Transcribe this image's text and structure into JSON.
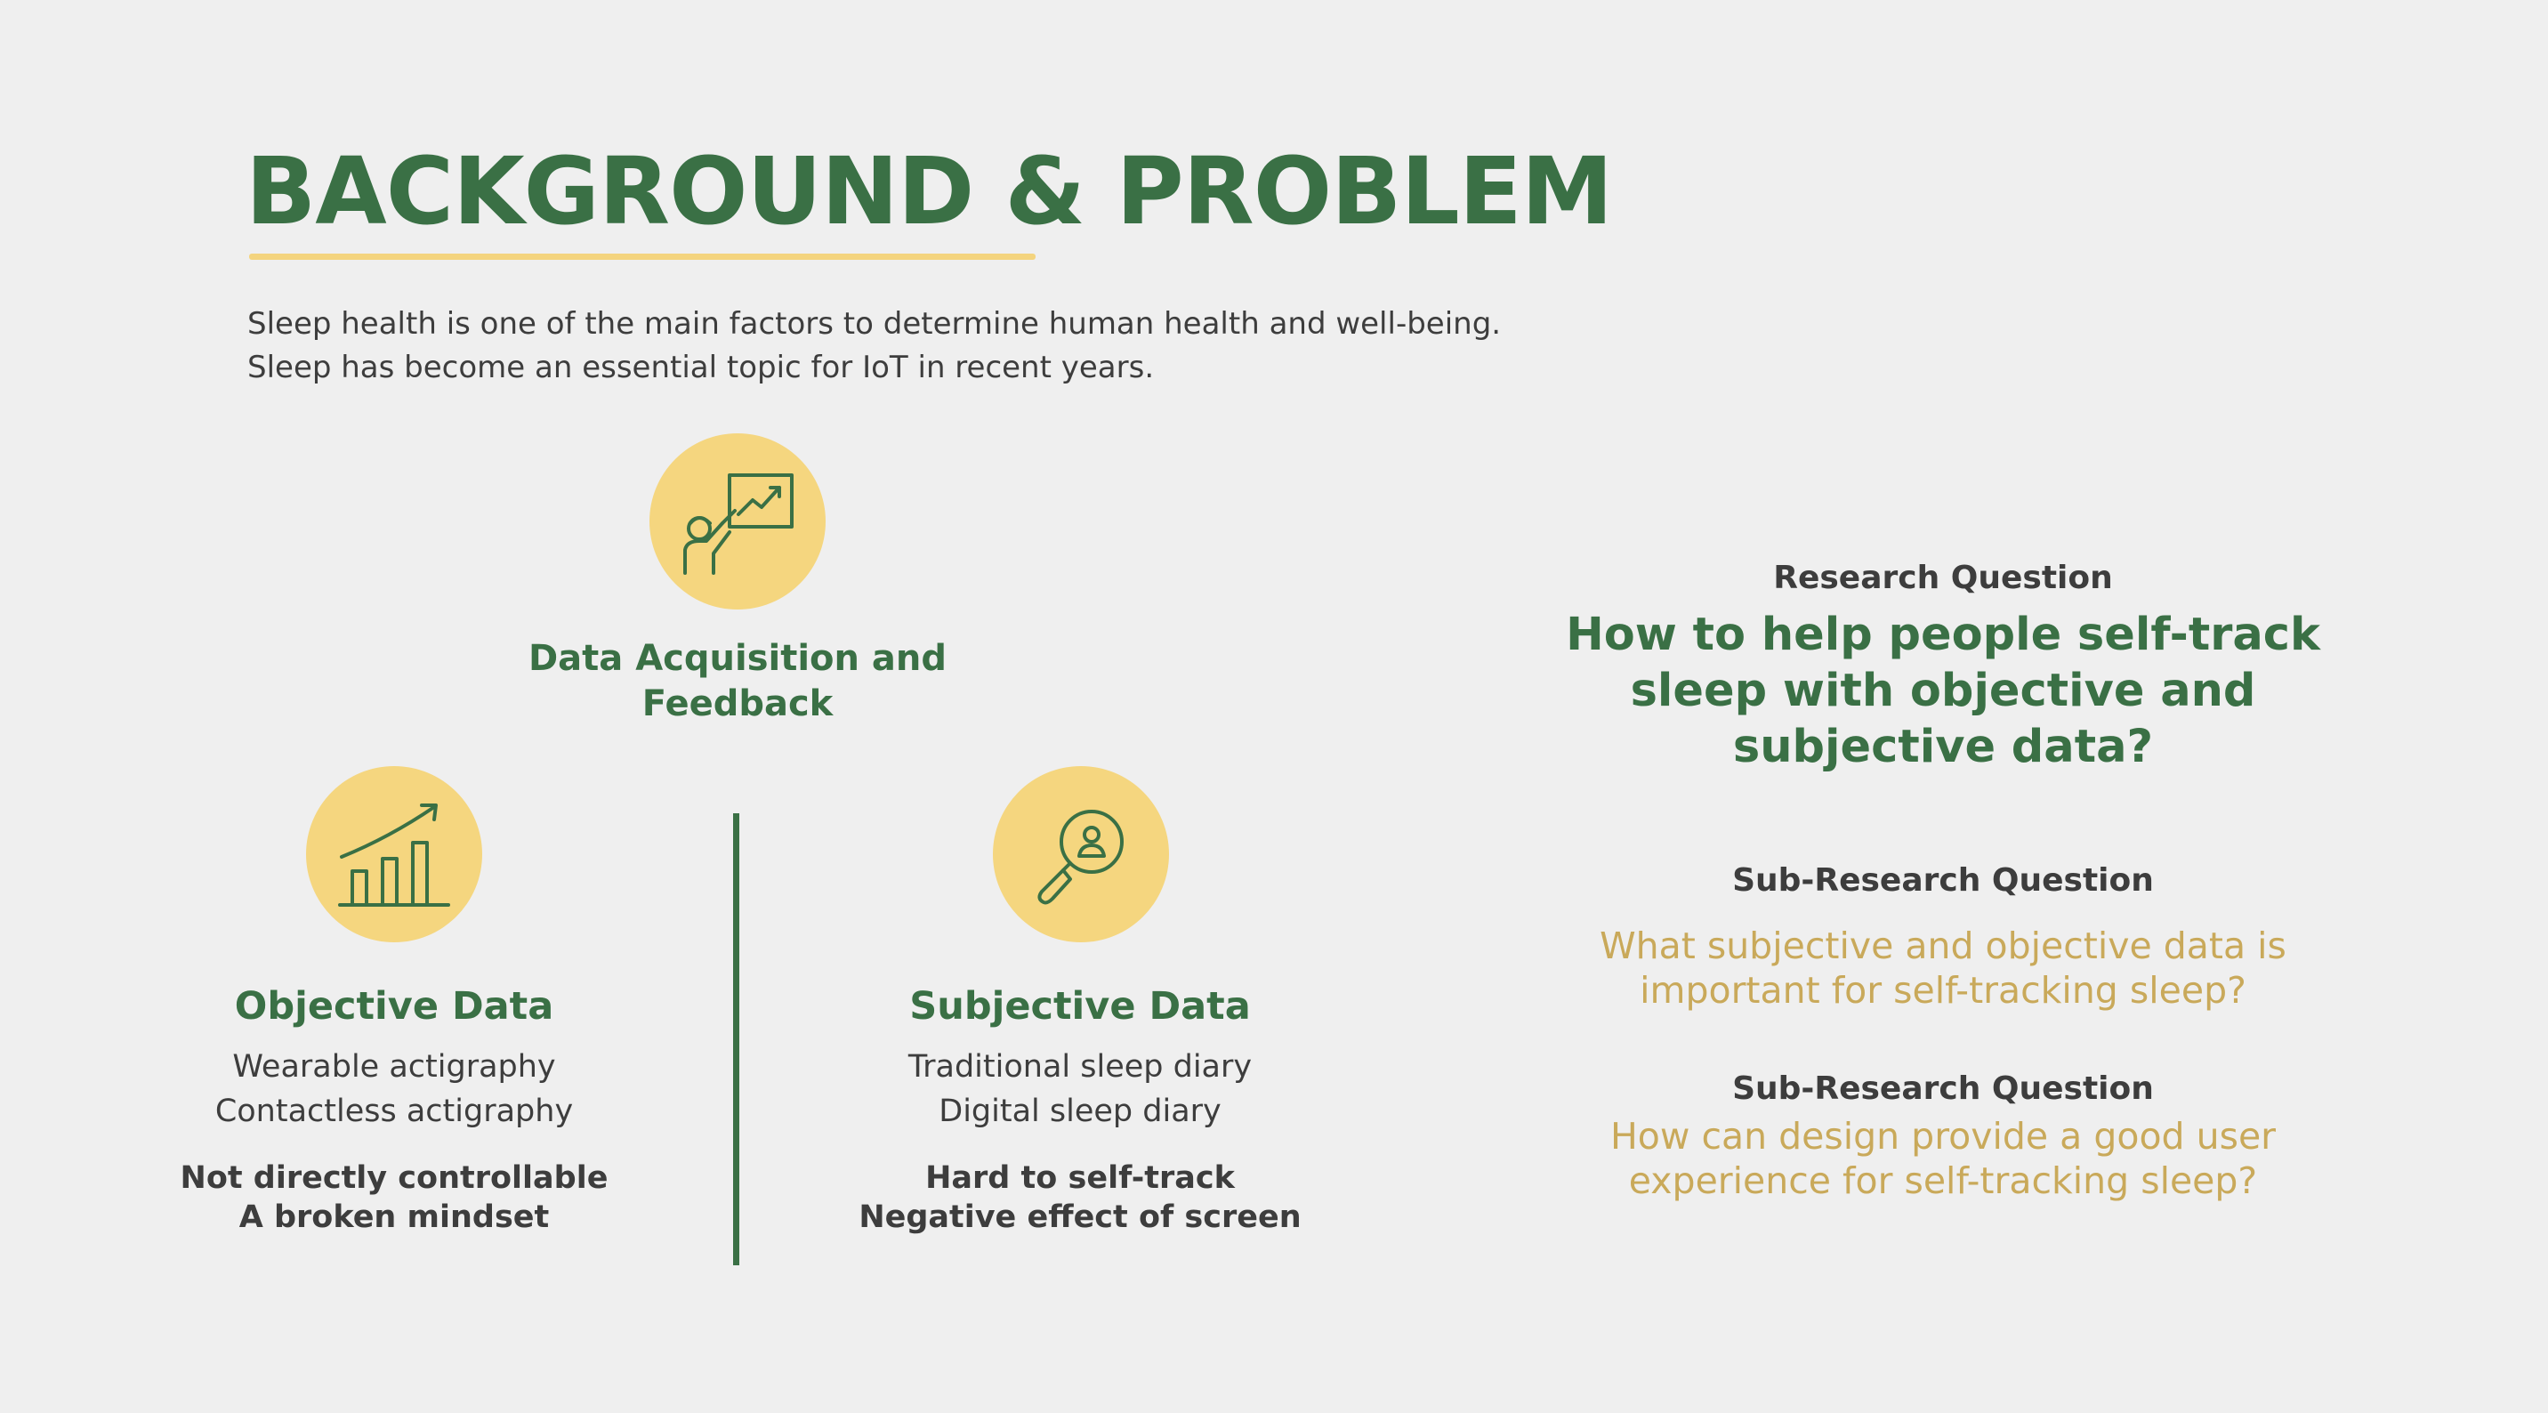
{
  "title": "BACKGROUND & PROBLEM",
  "intro": {
    "line1": "Sleep health is one of the main factors to determine human health and well-being.",
    "line2": "Sleep has become an essential topic for IoT in recent years."
  },
  "acquisition": {
    "icon": "presentation-chart-icon",
    "heading_line1": "Data Acquisition and",
    "heading_line2": "Feedback"
  },
  "objective": {
    "icon": "growth-bar-chart-icon",
    "heading": "Objective Data",
    "items": [
      "Wearable actigraphy",
      "Contactless actigraphy"
    ],
    "problems": [
      "Not directly controllable",
      "A broken mindset"
    ]
  },
  "subjective": {
    "icon": "magnifier-person-icon",
    "heading": "Subjective Data",
    "items": [
      "Traditional sleep diary",
      "Digital sleep diary"
    ],
    "problems": [
      "Hard to self-track",
      "Negative effect of screen"
    ]
  },
  "research": {
    "label": "Research Question",
    "question_lines": [
      "How to help people self-track",
      "sleep with objective and",
      "subjective data?"
    ],
    "sub_questions": [
      {
        "label": "Sub-Research Question",
        "lines": [
          "What subjective and objective data is",
          "important for self-tracking sleep?"
        ]
      },
      {
        "label": "Sub-Research Question",
        "lines": [
          "How can design provide a good user",
          "experience for self-tracking sleep?"
        ]
      }
    ]
  },
  "colors": {
    "accent_green": "#3a7045",
    "accent_yellow": "#f5d67f",
    "sub_question_gold": "#c9a95a",
    "background": "#efefef"
  }
}
